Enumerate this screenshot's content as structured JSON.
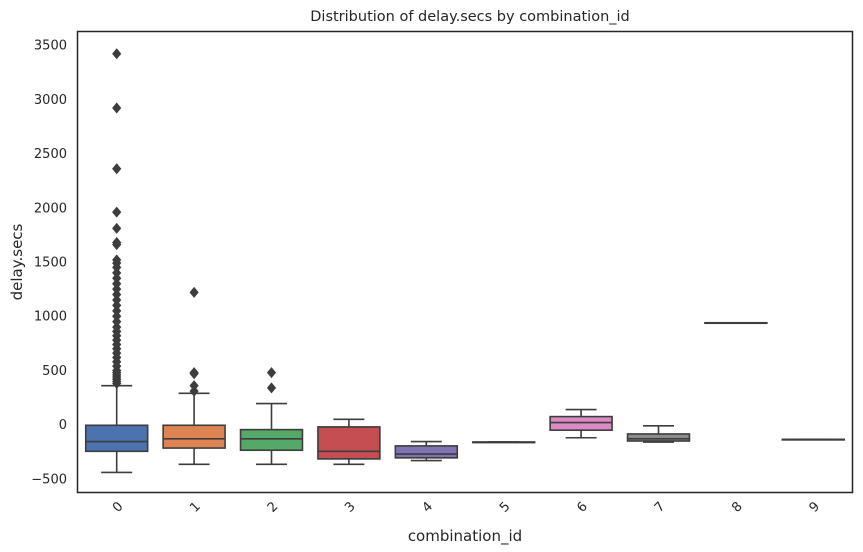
{
  "chart_data": {
    "type": "box",
    "title": "Distribution of delay.secs by combination_id",
    "xlabel": "combination_id",
    "ylabel": "delay.secs",
    "ylim": [
      -620,
      3620
    ],
    "yticks": [
      -500,
      0,
      500,
      1000,
      1500,
      2000,
      2500,
      3000,
      3500
    ],
    "categories": [
      "0",
      "1",
      "2",
      "3",
      "4",
      "5",
      "6",
      "7",
      "8",
      "9"
    ],
    "grid": false,
    "boxes": [
      {
        "category": "0",
        "color": "#4c72b0",
        "whisker_low": -440,
        "q1": -245,
        "median": -155,
        "q3": -5,
        "whisker_high": 360,
        "outliers": [
          380,
          400,
          420,
          440,
          460,
          480,
          500,
          540,
          580,
          620,
          660,
          700,
          740,
          780,
          820,
          860,
          900,
          950,
          1000,
          1050,
          1100,
          1150,
          1200,
          1250,
          1300,
          1350,
          1400,
          1450,
          1490,
          1520,
          1660,
          1680,
          1810,
          1960,
          2360,
          2920,
          3420
        ]
      },
      {
        "category": "1",
        "color": "#dd8452",
        "whisker_low": -365,
        "q1": -215,
        "median": -130,
        "q3": -5,
        "whisker_high": 290,
        "outliers": [
          310,
          360,
          470,
          480,
          1220
        ]
      },
      {
        "category": "2",
        "color": "#55a868",
        "whisker_low": -365,
        "q1": -235,
        "median": -130,
        "q3": -45,
        "whisker_high": 195,
        "outliers": [
          340,
          480
        ]
      },
      {
        "category": "3",
        "color": "#c44e52",
        "whisker_low": -365,
        "q1": -315,
        "median": -245,
        "q3": -20,
        "whisker_high": 50,
        "outliers": []
      },
      {
        "category": "4",
        "color": "#8172b3",
        "whisker_low": -330,
        "q1": -305,
        "median": -270,
        "q3": -195,
        "whisker_high": -155,
        "outliers": []
      },
      {
        "category": "5",
        "color": "#937860",
        "whisker_low": -160,
        "q1": -160,
        "median": -160,
        "q3": -160,
        "whisker_high": -160,
        "outliers": []
      },
      {
        "category": "6",
        "color": "#da8bc3",
        "whisker_low": -120,
        "q1": -50,
        "median": 20,
        "q3": 75,
        "whisker_high": 140,
        "outliers": []
      },
      {
        "category": "7",
        "color": "#8c8c8c",
        "whisker_low": -160,
        "q1": -150,
        "median": -130,
        "q3": -85,
        "whisker_high": -10,
        "outliers": []
      },
      {
        "category": "8",
        "color": "#ccb974",
        "whisker_low": 940,
        "q1": 940,
        "median": 940,
        "q3": 940,
        "whisker_high": 940,
        "outliers": []
      },
      {
        "category": "9",
        "color": "#64b5cd",
        "whisker_low": -135,
        "q1": -135,
        "median": -135,
        "q3": -135,
        "whisker_high": -135,
        "outliers": []
      }
    ]
  }
}
